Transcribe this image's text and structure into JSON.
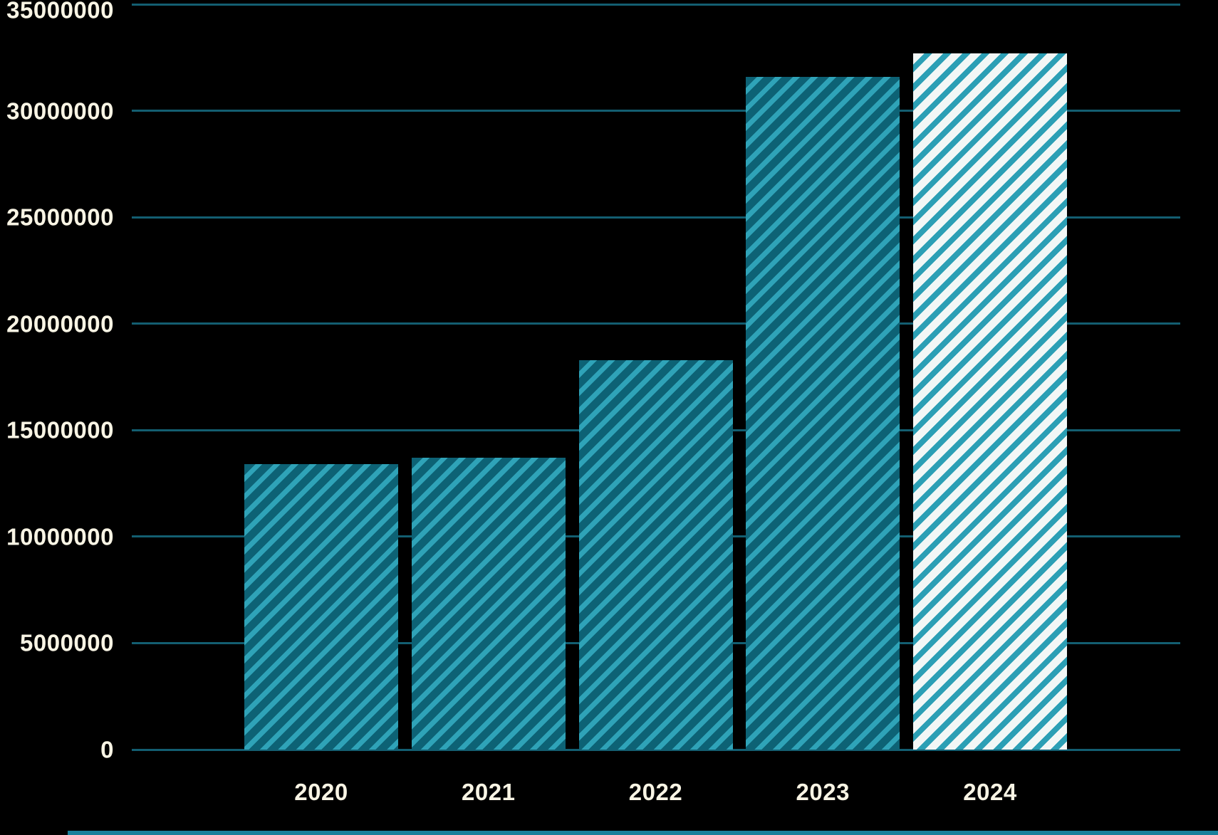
{
  "colors": {
    "background": "#000000",
    "gridline": "#135e71",
    "axis_label": "#f8f4e4",
    "bar_fill": "#0d6275",
    "bar_stripe": "#2fa3b8",
    "forecast_fill": "#f2f7f6",
    "forecast_stripe": "#2b9fb5",
    "bottom_strip": "#17809b"
  },
  "chart_data": {
    "type": "bar",
    "categories": [
      "2020",
      "2021",
      "2022",
      "2023",
      "2024"
    ],
    "values": [
      13400000,
      13700000,
      18300000,
      31600000,
      32700000
    ],
    "bar_styles": [
      "hatched-solid",
      "hatched-solid",
      "hatched-solid",
      "hatched-solid",
      "hatched-light"
    ],
    "title": "",
    "xlabel": "",
    "ylabel": "",
    "ylim": [
      0,
      35000000
    ],
    "ytick_interval": 5000000,
    "ytick_labels": [
      "0",
      "5000000",
      "10000000",
      "15000000",
      "20000000",
      "25000000",
      "30000000",
      "35000000"
    ],
    "grid": true,
    "legend": false,
    "background": "black"
  }
}
